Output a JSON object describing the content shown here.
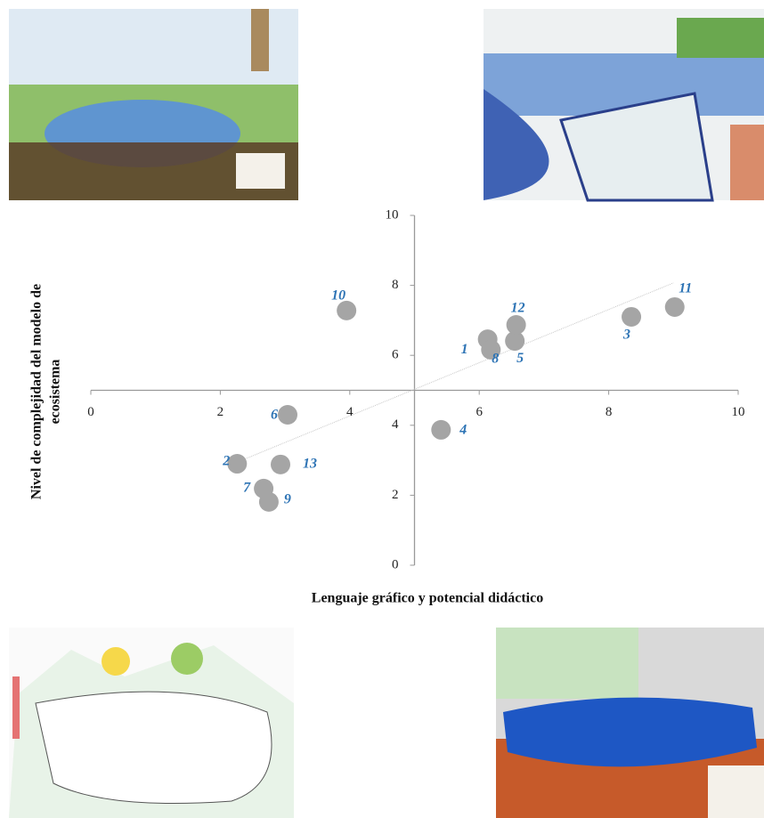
{
  "chart_data": {
    "type": "scatter",
    "xlabel": "Lenguaje gráfico y potencial didáctico",
    "ylabel": [
      "Nivel de complejidad del modelo de",
      "ecosistema"
    ],
    "x": [
      6.13,
      2.26,
      8.35,
      5.41,
      6.55,
      3.04,
      2.67,
      6.18,
      2.75,
      3.95,
      9.02,
      6.57,
      2.93
    ],
    "values": [
      6.46,
      2.9,
      7.1,
      3.87,
      6.41,
      4.3,
      2.19,
      6.16,
      1.81,
      7.28,
      7.38,
      6.87,
      2.88
    ],
    "point_labels": [
      "1",
      "2",
      "3",
      "4",
      "5",
      "6",
      "7",
      "8",
      "9",
      "10",
      "11",
      "12",
      "13"
    ],
    "color": "#a5a5a5",
    "label_color": "#2e74b5",
    "trendline": {
      "x": [
        2.2,
        9.0
      ],
      "y": [
        2.9,
        8.07
      ]
    },
    "xlim": [
      0,
      10
    ],
    "ylim": [
      0,
      10
    ],
    "axes_cross": [
      5,
      5
    ],
    "xticks": [
      0,
      2,
      4,
      6,
      8,
      10
    ],
    "yticks": [
      0,
      2,
      4,
      6,
      8,
      10
    ]
  }
}
